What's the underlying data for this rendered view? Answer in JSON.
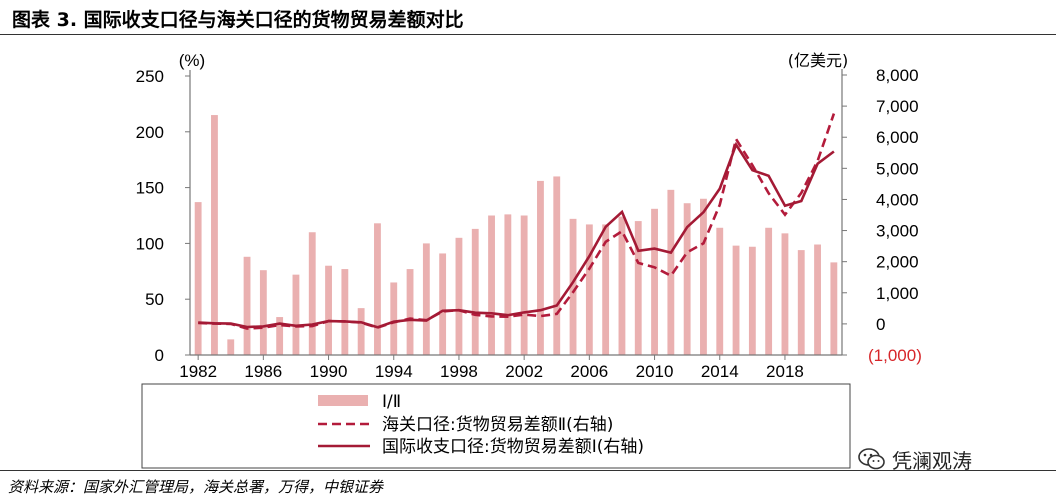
{
  "header": {
    "title": "图表 3. 国际收支口径与海关口径的货物贸易差额对比"
  },
  "footer": {
    "source": "资料来源：国家外汇管理局，海关总署，万得，中银证券",
    "watermark": "凭澜观涛"
  },
  "colors": {
    "bar": "#eab0b0",
    "customs_line": "#b31b3b",
    "bop_line": "#a41a35",
    "negative_tick": "#d7262a"
  },
  "chart_data": {
    "type": "bar",
    "title": "国际收支口径与海关口径的货物贸易差额对比",
    "left_axis": {
      "unit": "(%)",
      "ylim": [
        0,
        250
      ],
      "ticks": [
        "0",
        "50",
        "100",
        "150",
        "200",
        "250"
      ]
    },
    "right_axis": {
      "unit": "(亿美元)",
      "ylim": [
        -1000,
        8000
      ],
      "ticks": [
        "(1,000)",
        "0",
        "1,000",
        "2,000",
        "3,000",
        "4,000",
        "5,000",
        "6,000",
        "7,000",
        "8,000"
      ]
    },
    "x_tick_labels": [
      "1982",
      "1986",
      "1990",
      "1994",
      "1998",
      "2002",
      "2006",
      "2010",
      "2014",
      "2018"
    ],
    "x": [
      1982,
      1983,
      1984,
      1985,
      1986,
      1987,
      1988,
      1989,
      1990,
      1991,
      1992,
      1993,
      1994,
      1995,
      1996,
      1997,
      1998,
      1999,
      2000,
      2001,
      2002,
      2003,
      2004,
      2005,
      2006,
      2007,
      2008,
      2009,
      2010,
      2011,
      2012,
      2013,
      2014,
      2015,
      2016,
      2017,
      2018,
      2019,
      2020,
      2021
    ],
    "series": [
      {
        "name": "Ⅰ/Ⅱ",
        "type": "bar",
        "axis": "left",
        "values": [
          137,
          215,
          14,
          88,
          76,
          34,
          72,
          110,
          80,
          77,
          42,
          118,
          65,
          77,
          100,
          91,
          105,
          113,
          125,
          126,
          125,
          156,
          160,
          122,
          117,
          117,
          124,
          120,
          131,
          148,
          136,
          140,
          114,
          98,
          97,
          114,
          109,
          94,
          99,
          83
        ]
      },
      {
        "name": "海关口径:货物贸易差额Ⅱ(右轴)",
        "type": "line",
        "style": "dashed",
        "axis": "right",
        "values": [
          30,
          10,
          0,
          -150,
          -120,
          -40,
          -80,
          -70,
          90,
          80,
          40,
          -120,
          50,
          170,
          120,
          400,
          440,
          290,
          240,
          230,
          300,
          250,
          320,
          1020,
          1780,
          2640,
          2980,
          1960,
          1820,
          1550,
          2300,
          2590,
          3830,
          5940,
          5100,
          4200,
          3510,
          4210,
          5240,
          6760
        ]
      },
      {
        "name": "国际收支口径:货物贸易差额Ⅰ(右轴)",
        "type": "line",
        "style": "solid",
        "axis": "right",
        "values": [
          40,
          20,
          10,
          -100,
          -80,
          10,
          -60,
          -20,
          90,
          80,
          50,
          -110,
          70,
          130,
          110,
          420,
          440,
          360,
          340,
          280,
          370,
          440,
          590,
          1340,
          2180,
          3120,
          3600,
          2350,
          2420,
          2290,
          3110,
          3590,
          4350,
          5760,
          4940,
          4760,
          3800,
          3950,
          5150,
          5540
        ]
      }
    ],
    "legend": "bottom",
    "grid": false
  }
}
